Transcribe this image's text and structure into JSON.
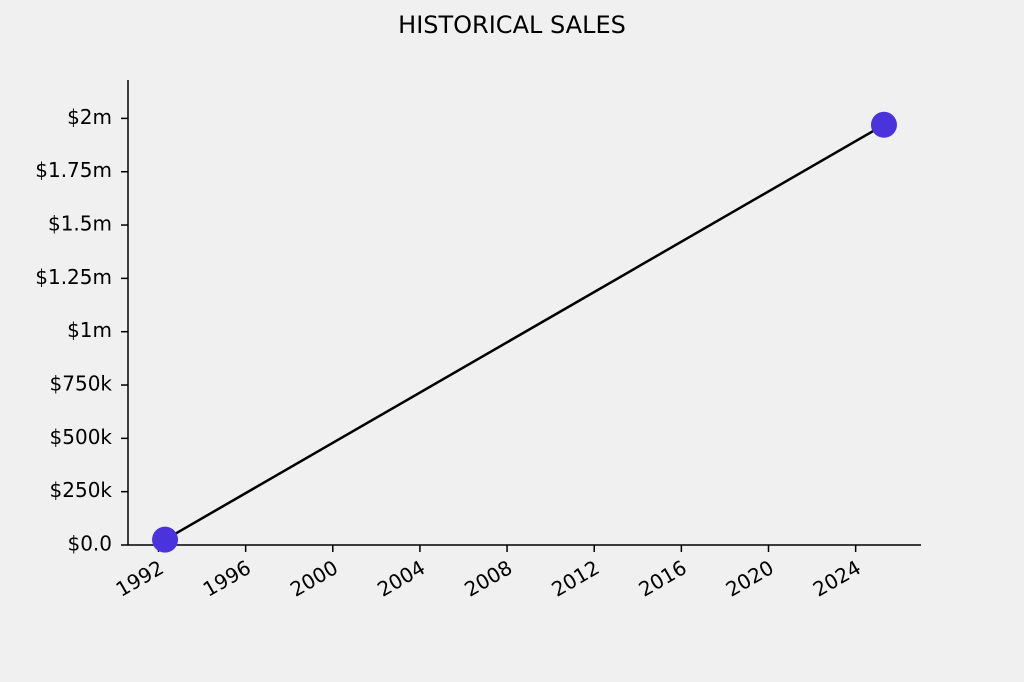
{
  "chart_data": {
    "type": "line",
    "title": "HISTORICAL SALES",
    "x": [
      1992.3,
      2025.3
    ],
    "series": [
      {
        "values": [
          25000,
          1970000
        ],
        "color": "#000000",
        "marker_color": "#4a33dd"
      }
    ],
    "xlim": [
      1990.6,
      2027.0
    ],
    "xticks": [
      1992,
      1996,
      2000,
      2004,
      2008,
      2012,
      2016,
      2020,
      2024
    ],
    "ylim": [
      0,
      2180000
    ],
    "yticks": [
      {
        "value": 0,
        "label": "$0.0"
      },
      {
        "value": 250000,
        "label": "$250k"
      },
      {
        "value": 500000,
        "label": "$500k"
      },
      {
        "value": 750000,
        "label": "$750k"
      },
      {
        "value": 1000000,
        "label": "$1m"
      },
      {
        "value": 1250000,
        "label": "$1.25m"
      },
      {
        "value": 1500000,
        "label": "$1.5m"
      },
      {
        "value": 1750000,
        "label": "$1.75m"
      },
      {
        "value": 2000000,
        "label": "$2m"
      }
    ],
    "grid": false
  }
}
